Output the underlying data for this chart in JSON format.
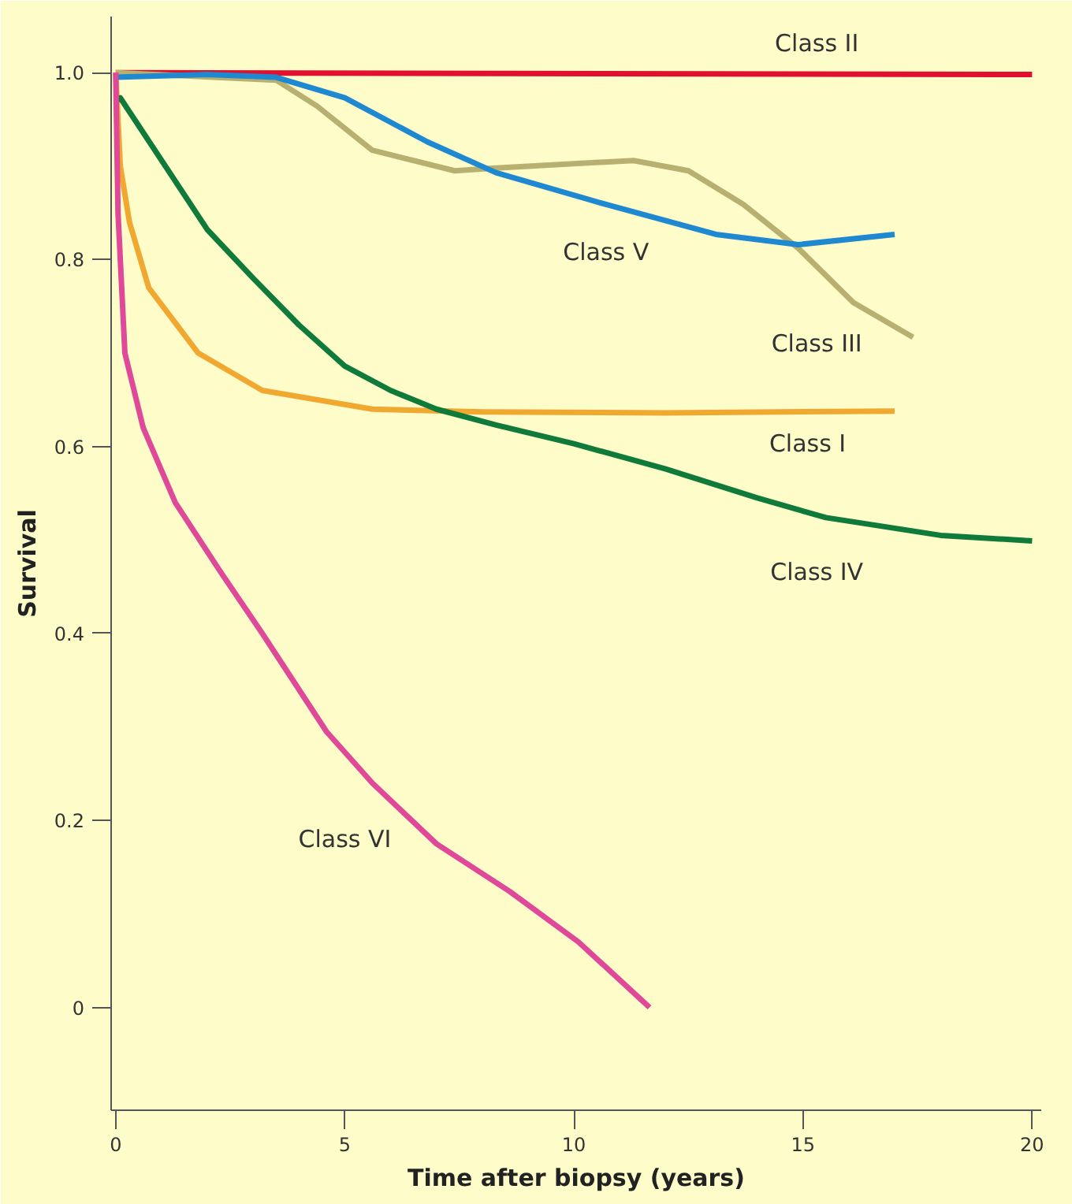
{
  "chart_data": {
    "type": "line",
    "xlabel": "Time after biopsy (years)",
    "ylabel": "Survival",
    "xlim": [
      -0.1,
      20.2
    ],
    "ylim": [
      -0.11,
      1.06
    ],
    "xticks": [
      0,
      5,
      10,
      15,
      20
    ],
    "yticks": [
      {
        "value": 0,
        "label": "0"
      },
      0.2,
      0.4,
      0.6,
      0.8,
      {
        "value": 1,
        "label": "1.0"
      }
    ],
    "grid": false,
    "legend": false,
    "marker": "none",
    "line_style": "solid",
    "series": [
      {
        "name": "Class I",
        "color": "#f0a830",
        "x": [
          0,
          0.1,
          0.3,
          0.72,
          1.8,
          3.2,
          5.6,
          8,
          12,
          17
        ],
        "values": [
          1.0,
          0.9,
          0.84,
          0.77,
          0.7,
          0.66,
          0.64,
          0.637,
          0.636,
          0.638
        ]
      },
      {
        "name": "Class II",
        "color": "#e0102e",
        "x": [
          0,
          20
        ],
        "values": [
          1.0,
          0.998
        ]
      },
      {
        "name": "Class III",
        "color": "#b8b070",
        "x": [
          0,
          3.5,
          4.4,
          5.6,
          7.4,
          8.3,
          11.3,
          12.5,
          13.7,
          14.9,
          16.1,
          17.4
        ],
        "values": [
          1.0,
          0.992,
          0.964,
          0.917,
          0.895,
          0.898,
          0.906,
          0.895,
          0.859,
          0.812,
          0.754,
          0.717
        ]
      },
      {
        "name": "Class IV",
        "color": "#0f7a3a",
        "x": [
          0,
          0.1,
          2,
          3,
          4,
          5,
          6,
          7,
          8.3,
          10,
          12,
          14,
          15.5,
          18,
          20
        ],
        "values": [
          0.97,
          0.973,
          0.832,
          0.78,
          0.73,
          0.686,
          0.66,
          0.64,
          0.623,
          0.603,
          0.576,
          0.545,
          0.524,
          0.505,
          0.499
        ]
      },
      {
        "name": "Class V",
        "color": "#1e88d0",
        "x": [
          0,
          2,
          3.5,
          5,
          6.8,
          8.3,
          10.7,
          13.1,
          14.9,
          17
        ],
        "values": [
          0.995,
          0.998,
          0.995,
          0.973,
          0.926,
          0.893,
          0.859,
          0.827,
          0.816,
          0.827
        ]
      },
      {
        "name": "Class VI",
        "color": "#e0489a",
        "x": [
          0,
          0.05,
          0.2,
          0.6,
          1.3,
          2.3,
          3.2,
          4.6,
          5.6,
          7,
          8.6,
          10.1,
          11.65
        ],
        "values": [
          1.0,
          0.85,
          0.7,
          0.62,
          0.54,
          0.465,
          0.4,
          0.295,
          0.24,
          0.175,
          0.124,
          0.07,
          0
        ]
      }
    ]
  }
}
